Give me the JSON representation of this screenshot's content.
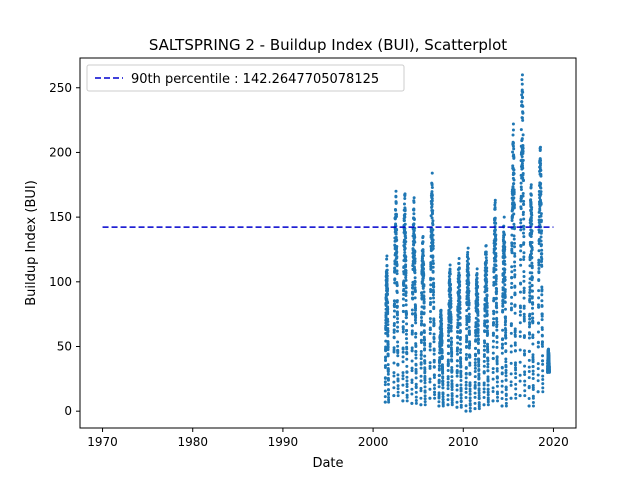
{
  "chart_data": {
    "type": "scatter",
    "title": "SALTSPRING 2 - Buildup Index (BUI), Scatterplot",
    "xlabel": "Date",
    "ylabel": "Buildup Index (BUI)",
    "xlim": [
      1967.5,
      2022.5
    ],
    "ylim": [
      -13,
      273
    ],
    "xticks": [
      1970,
      1980,
      1990,
      2000,
      2010,
      2020
    ],
    "yticks": [
      0,
      50,
      100,
      150,
      200,
      250
    ],
    "series_color": "#1f77b4",
    "reference_line": {
      "label": "90th percentile : 142.2647705078125",
      "value": 142.2647705078125,
      "x_start": 1970,
      "x_end": 2020,
      "color": "#0000cd",
      "style": "dashed"
    },
    "legend": "top-left",
    "seasons": [
      {
        "start": 2001.35,
        "end": 2001.72,
        "low": 7,
        "peak": 120
      },
      {
        "start": 2002.3,
        "end": 2002.78,
        "low": 12,
        "peak": 170
      },
      {
        "start": 2003.3,
        "end": 2003.78,
        "low": 8,
        "peak": 168
      },
      {
        "start": 2004.3,
        "end": 2004.8,
        "low": 6,
        "peak": 165
      },
      {
        "start": 2005.3,
        "end": 2005.78,
        "low": 5,
        "peak": 135
      },
      {
        "start": 2006.3,
        "end": 2006.82,
        "low": 10,
        "peak": 184
      },
      {
        "start": 2007.3,
        "end": 2007.78,
        "low": 4,
        "peak": 78
      },
      {
        "start": 2008.3,
        "end": 2008.78,
        "low": 5,
        "peak": 113
      },
      {
        "start": 2009.3,
        "end": 2009.78,
        "low": 3,
        "peak": 118
      },
      {
        "start": 2010.3,
        "end": 2010.78,
        "low": 0,
        "peak": 126
      },
      {
        "start": 2011.3,
        "end": 2011.78,
        "low": 2,
        "peak": 110
      },
      {
        "start": 2012.3,
        "end": 2012.78,
        "low": 5,
        "peak": 128
      },
      {
        "start": 2013.3,
        "end": 2013.8,
        "low": 8,
        "peak": 163
      },
      {
        "start": 2014.3,
        "end": 2014.78,
        "low": 4,
        "peak": 150
      },
      {
        "start": 2015.3,
        "end": 2015.82,
        "low": 10,
        "peak": 222
      },
      {
        "start": 2016.3,
        "end": 2016.82,
        "low": 12,
        "peak": 260
      },
      {
        "start": 2017.3,
        "end": 2017.78,
        "low": 4,
        "peak": 175
      },
      {
        "start": 2018.3,
        "end": 2018.82,
        "low": 15,
        "peak": 204
      },
      {
        "start": 2019.35,
        "end": 2019.55,
        "low": 30,
        "peak": 48
      }
    ]
  }
}
